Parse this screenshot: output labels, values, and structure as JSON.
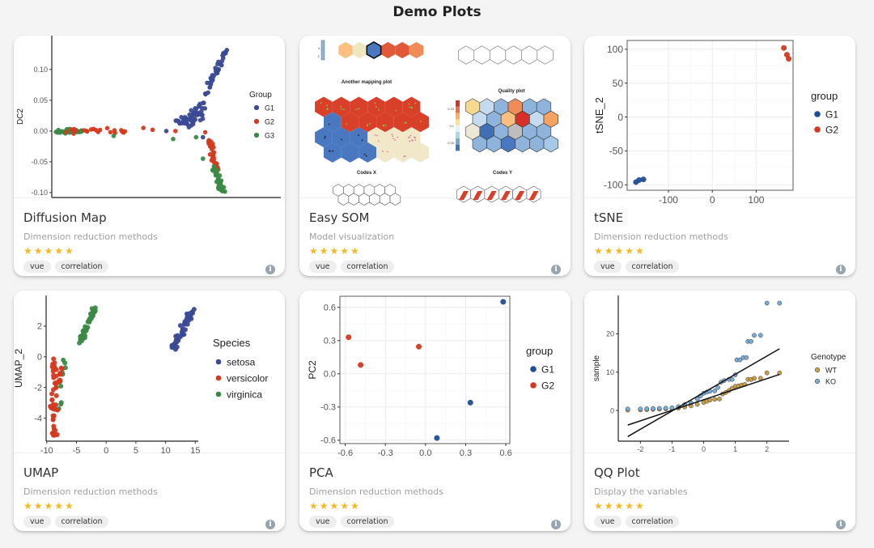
{
  "page_title": "Demo Plots",
  "colors": {
    "star": "#f5b820",
    "tag_bg": "#eeeeee"
  },
  "cards": [
    {
      "title": "Diffusion Map",
      "subtitle": "Dimension reduction methods",
      "rating": 5,
      "stars": "★★★★★",
      "tags": [
        "vue",
        "correlation"
      ],
      "plot": {
        "type": "scatter",
        "theme": "classic",
        "ylabel": "DC2",
        "xlim": [
          0,
          1
        ],
        "ylim": [
          -0.108,
          0.155
        ],
        "xticks": [],
        "yticks": [
          -0.1,
          -0.05,
          0,
          0.05,
          0.1
        ],
        "ytick_labels": [
          "-0.10",
          "-0.05",
          "0.00",
          "0.05",
          "0.10"
        ],
        "legend_title": "Group",
        "groups": [
          {
            "name": "G1",
            "color": "#3b4a94"
          },
          {
            "name": "G2",
            "color": "#d43a1f"
          },
          {
            "name": "G3",
            "color": "#3a8a46"
          }
        ],
        "clusters": [
          {
            "group": "G3",
            "from": [
              0.03,
              0.0
            ],
            "to": [
              0.12,
              0.0
            ],
            "n": 40,
            "spread": [
              0.015,
              0.002
            ]
          },
          {
            "group": "G2",
            "from": [
              0.06,
              0.0
            ],
            "to": [
              0.33,
              0.0
            ],
            "n": 22,
            "spread": [
              0.01,
              0.003
            ]
          },
          {
            "group": "G1",
            "from": [
              0.55,
              0.01
            ],
            "to": [
              0.66,
              0.03
            ],
            "n": 50,
            "spread": [
              0.025,
              0.008
            ]
          },
          {
            "group": "G1",
            "from": [
              0.64,
              0.03
            ],
            "to": [
              0.77,
              0.14
            ],
            "n": 45,
            "spread": [
              0.008,
              0.004
            ]
          },
          {
            "group": "G2",
            "from": [
              0.69,
              -0.015
            ],
            "to": [
              0.72,
              -0.065
            ],
            "n": 35,
            "spread": [
              0.008,
              0.004
            ]
          },
          {
            "group": "G3",
            "from": [
              0.71,
              -0.06
            ],
            "to": [
              0.75,
              -0.1
            ],
            "n": 40,
            "spread": [
              0.009,
              0.005
            ]
          }
        ],
        "points": [
          [
            0.4,
            0.005,
            "G2"
          ],
          [
            0.44,
            0.002,
            "G2"
          ],
          [
            0.5,
            0.0,
            "G1"
          ],
          [
            0.54,
            0.0,
            "G2"
          ],
          [
            0.53,
            -0.013,
            "G3"
          ],
          [
            0.27,
            -0.008,
            "G3"
          ],
          [
            0.63,
            -0.01,
            "G3"
          ],
          [
            0.66,
            -0.01,
            "G1"
          ],
          [
            0.67,
            -0.002,
            "G2"
          ],
          [
            0.66,
            -0.045,
            "G3"
          ]
        ]
      }
    },
    {
      "title": "Easy SOM",
      "subtitle": "Model visualization",
      "rating": 5,
      "stars": "★★★★★",
      "tags": [
        "vue",
        "correlation"
      ],
      "plot": {
        "type": "som",
        "labels": {
          "mapping": "Another mapping plot",
          "quality": "Quality plot",
          "codes_x": "Codes X",
          "codes_y": "Codes Y"
        },
        "top_left_scale": [
          "4",
          "2"
        ],
        "quality_scale": [
          "0.15",
          "0.1",
          "0.05"
        ],
        "top_left_row": [
          "#fbbf80",
          "#f0e6c0",
          "#4a78c0",
          "#e05a3a",
          "#e05a3a",
          "#f08c55"
        ],
        "mapping_grid": [
          [
            "#d9402a",
            "#d9402a",
            "#d9402a",
            "#d9402a",
            "#d9402a",
            "#d9402a"
          ],
          [
            "#4a78c0",
            "#d9402a",
            "#d9402a",
            "#d9402a",
            "#d9402a",
            "#d9402a"
          ],
          [
            "#4a78c0",
            "#4a78c0",
            "#4a78c0",
            "#f0e8c8",
            "#f0e8c8",
            "#f0e8c8"
          ],
          [
            "#4a78c0",
            "#4a78c0",
            "#4a78c0",
            "#f0e8c8",
            "#f0e8c8",
            "#f0e8c8"
          ]
        ],
        "quality_grid": [
          [
            "#f5d98f",
            "#c6dbef",
            "#8fb4dc",
            "#f08c55",
            "#8fb4dc",
            "#8fb4dc"
          ],
          [
            "#c6dbef",
            "#8fb4dc",
            "#fbbf80",
            "#d73027",
            "#c6dbef",
            "#f4a460"
          ],
          [
            "#ece8d8",
            "#3f6fb5",
            "#8fb4dc",
            "#bdbdbd",
            "#8fb4dc",
            "#8fb4dc"
          ],
          [
            "#8fb4dc",
            "#8fb4dc",
            "#4a78c0",
            "#8fb4dc",
            "#8fb4dc",
            "#a8c8e8"
          ]
        ]
      }
    },
    {
      "title": "tSNE",
      "subtitle": "Dimension reduction methods",
      "rating": 5,
      "stars": "★★★★★",
      "tags": [
        "vue",
        "correlation"
      ],
      "plot": {
        "type": "scatter",
        "theme": "grid",
        "ylabel": "tSNE_2",
        "xlim": [
          -194,
          184
        ],
        "ylim": [
          -108,
          113
        ],
        "xticks": [
          -100,
          0,
          100
        ],
        "yticks": [
          -100,
          -50,
          0,
          50,
          100
        ],
        "legend_title": "group",
        "groups": [
          {
            "name": "G1",
            "color": "#1f4e96"
          },
          {
            "name": "G2",
            "color": "#d2391f"
          }
        ],
        "points": [
          [
            -174,
            -96,
            "G1"
          ],
          [
            -167,
            -93,
            "G1"
          ],
          [
            -157,
            -92,
            "G1"
          ],
          [
            163,
            102,
            "G2"
          ],
          [
            170,
            92,
            "G2"
          ],
          [
            174,
            86,
            "G2"
          ]
        ]
      }
    },
    {
      "title": "UMAP",
      "subtitle": "Dimension reduction methods",
      "rating": 5,
      "stars": "★★★★★",
      "tags": [
        "vue",
        "correlation"
      ],
      "plot": {
        "type": "scatter",
        "theme": "classic",
        "ylabel": "UMAP_2",
        "xlim": [
          -10.1,
          15.5
        ],
        "ylim": [
          -5.5,
          4
        ],
        "xticks": [
          -10,
          -5,
          0,
          5,
          10,
          15
        ],
        "yticks": [
          -4,
          -2,
          0,
          2
        ],
        "legend_title": "Species",
        "groups": [
          {
            "name": "setosa",
            "color": "#3b4a94"
          },
          {
            "name": "versicolor",
            "color": "#d43a1f"
          },
          {
            "name": "virginica",
            "color": "#3a8a46"
          }
        ],
        "clusters": [
          {
            "group": "setosa",
            "from": [
              11.3,
              0.6
            ],
            "to": [
              14.6,
              3.1
            ],
            "n": 50,
            "spread": [
              0.4,
              0.2
            ]
          },
          {
            "group": "virginica",
            "from": [
              -4.4,
              1.0
            ],
            "to": [
              -2.0,
              3.1
            ],
            "n": 40,
            "spread": [
              0.35,
              0.15
            ]
          },
          {
            "group": "virginica",
            "from": [
              -7.2,
              -0.2
            ],
            "to": [
              -7.8,
              -3.9
            ],
            "n": 10,
            "spread": [
              0.3,
              0.2
            ]
          },
          {
            "group": "versicolor",
            "from": [
              -8.7,
              -0.3
            ],
            "to": [
              -8.9,
              -5.2
            ],
            "n": 45,
            "spread": [
              0.35,
              0.15
            ]
          },
          {
            "group": "versicolor",
            "from": [
              -7.5,
              -0.2
            ],
            "to": [
              -7.9,
              -1.7
            ],
            "n": 8,
            "spread": [
              0.2,
              0.15
            ]
          }
        ],
        "points": []
      }
    },
    {
      "title": "PCA",
      "subtitle": "Dimension reduction methods",
      "rating": 5,
      "stars": "★★★★★",
      "tags": [
        "vue",
        "correlation"
      ],
      "plot": {
        "type": "scatter",
        "theme": "grid",
        "ylabel": "PC2",
        "xlim": [
          -0.64,
          0.63
        ],
        "ylim": [
          -0.63,
          0.7
        ],
        "xticks": [
          -0.6,
          -0.3,
          0,
          0.3,
          0.6
        ],
        "xtick_labels": [
          "-0.6",
          "-0.3",
          "0.0",
          "0.3",
          "0.6"
        ],
        "yticks": [
          -0.6,
          -0.3,
          0,
          0.3,
          0.6
        ],
        "ytick_labels": [
          "-0.6",
          "-0.3",
          "0.0",
          "0.3",
          "0.6"
        ],
        "legend_title": "group",
        "groups": [
          {
            "name": "G1",
            "color": "#1f4e96"
          },
          {
            "name": "G2",
            "color": "#d2391f"
          }
        ],
        "points": [
          [
            0.58,
            0.65,
            "G1"
          ],
          [
            0.335,
            -0.26,
            "G1"
          ],
          [
            0.085,
            -0.58,
            "G1"
          ],
          [
            -0.575,
            0.33,
            "G2"
          ],
          [
            -0.485,
            0.08,
            "G2"
          ],
          [
            -0.05,
            0.245,
            "G2"
          ]
        ]
      }
    },
    {
      "title": "QQ Plot",
      "subtitle": "Display the variables",
      "rating": 5,
      "stars": "★★★★★",
      "tags": [
        "vue",
        "correlation"
      ],
      "plot": {
        "type": "scatter",
        "theme": "classic",
        "ylabel": "sample",
        "outlined": true,
        "xlim": [
          -2.7,
          2.7
        ],
        "ylim": [
          -8,
          30
        ],
        "xticks": [
          -2,
          -1,
          0,
          1,
          2
        ],
        "yticks": [
          0,
          10,
          20
        ],
        "legend_title": "Genotype",
        "groups": [
          {
            "name": "WT",
            "color": "#c9a04a"
          },
          {
            "name": "KO",
            "color": "#79acd6"
          }
        ],
        "lines": [
          [
            -2.4,
            -3.8,
            2.4,
            9.4
          ],
          [
            -2.4,
            -6.8,
            2.4,
            16.1
          ]
        ],
        "points": [
          [
            -2.4,
            0.1,
            "WT"
          ],
          [
            -2.0,
            0.15,
            "WT"
          ],
          [
            -1.8,
            0.2,
            "WT"
          ],
          [
            -1.6,
            0.3,
            "WT"
          ],
          [
            -1.4,
            0.35,
            "WT"
          ],
          [
            -1.2,
            0.4,
            "WT"
          ],
          [
            -1.0,
            0.45,
            "WT"
          ],
          [
            -0.8,
            0.6,
            "WT"
          ],
          [
            -0.6,
            0.9,
            "WT"
          ],
          [
            -0.4,
            1.2,
            "WT"
          ],
          [
            -0.2,
            1.6,
            "WT"
          ],
          [
            0.0,
            2.1,
            "WT"
          ],
          [
            0.1,
            2.4,
            "WT"
          ],
          [
            0.2,
            2.7,
            "WT"
          ],
          [
            0.35,
            2.9,
            "WT"
          ],
          [
            0.5,
            3.0,
            "WT"
          ],
          [
            0.6,
            4.3,
            "WT"
          ],
          [
            0.7,
            4.7,
            "WT"
          ],
          [
            0.8,
            5.2,
            "WT"
          ],
          [
            0.9,
            5.8,
            "WT"
          ],
          [
            1.0,
            6.3,
            "WT"
          ],
          [
            1.1,
            6.4,
            "WT"
          ],
          [
            1.2,
            6.6,
            "WT"
          ],
          [
            1.3,
            6.8,
            "WT"
          ],
          [
            1.4,
            8.1,
            "WT"
          ],
          [
            1.5,
            8.1,
            "WT"
          ],
          [
            1.6,
            8.4,
            "WT"
          ],
          [
            1.8,
            8.4,
            "WT"
          ],
          [
            2.0,
            9.8,
            "WT"
          ],
          [
            2.4,
            9.8,
            "WT"
          ],
          [
            -2.4,
            0.4,
            "KO"
          ],
          [
            -2.0,
            0.4,
            "KO"
          ],
          [
            -1.8,
            0.45,
            "KO"
          ],
          [
            -1.6,
            0.5,
            "KO"
          ],
          [
            -1.4,
            0.55,
            "KO"
          ],
          [
            -1.2,
            0.6,
            "KO"
          ],
          [
            -1.0,
            0.7,
            "KO"
          ],
          [
            -0.8,
            1.0,
            "KO"
          ],
          [
            -0.6,
            1.6,
            "KO"
          ],
          [
            -0.4,
            2.0,
            "KO"
          ],
          [
            -0.2,
            3.0,
            "KO"
          ],
          [
            -0.1,
            3.8,
            "KO"
          ],
          [
            0.0,
            4.5,
            "KO"
          ],
          [
            0.1,
            4.8,
            "KO"
          ],
          [
            0.2,
            5.0,
            "KO"
          ],
          [
            0.35,
            5.1,
            "KO"
          ],
          [
            0.45,
            6.0,
            "KO"
          ],
          [
            0.55,
            7.4,
            "KO"
          ],
          [
            0.65,
            7.8,
            "KO"
          ],
          [
            0.8,
            8.1,
            "KO"
          ],
          [
            0.9,
            8.1,
            "KO"
          ],
          [
            1.0,
            9.3,
            "KO"
          ],
          [
            1.05,
            13.2,
            "KO"
          ],
          [
            1.15,
            13.2,
            "KO"
          ],
          [
            1.25,
            13.8,
            "KO"
          ],
          [
            1.35,
            13.8,
            "KO"
          ],
          [
            1.4,
            18.0,
            "KO"
          ],
          [
            1.5,
            18.0,
            "KO"
          ],
          [
            1.6,
            19.6,
            "KO"
          ],
          [
            1.8,
            19.6,
            "KO"
          ],
          [
            2.0,
            28.0,
            "KO"
          ],
          [
            2.4,
            28.0,
            "KO"
          ]
        ]
      }
    }
  ]
}
